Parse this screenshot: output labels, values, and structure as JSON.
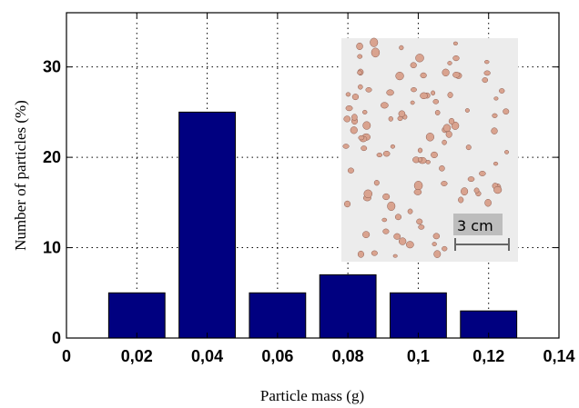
{
  "chart_data": {
    "type": "bar",
    "categories": [
      "0,02",
      "0,04",
      "0,06",
      "0,08",
      "0,1",
      "0,12"
    ],
    "x": [
      0.02,
      0.04,
      0.06,
      0.08,
      0.1,
      0.12
    ],
    "values": [
      5,
      25,
      5,
      7,
      5,
      3
    ],
    "xlabel": "Particle mass (g)",
    "ylabel": "Number of particles (%)",
    "xlim": [
      0,
      0.14
    ],
    "ylim": [
      0,
      36
    ],
    "x_ticks": [
      "0",
      "0,02",
      "0,04",
      "0,06",
      "0,08",
      "0,1",
      "0,12",
      "0,14"
    ],
    "y_ticks": [
      "0",
      "10",
      "20",
      "30"
    ],
    "grid": true,
    "bar_color": "#000080",
    "inset": {
      "scale_label": "3 cm",
      "background": "#ececec",
      "particle_color": "#d9a38f"
    }
  }
}
